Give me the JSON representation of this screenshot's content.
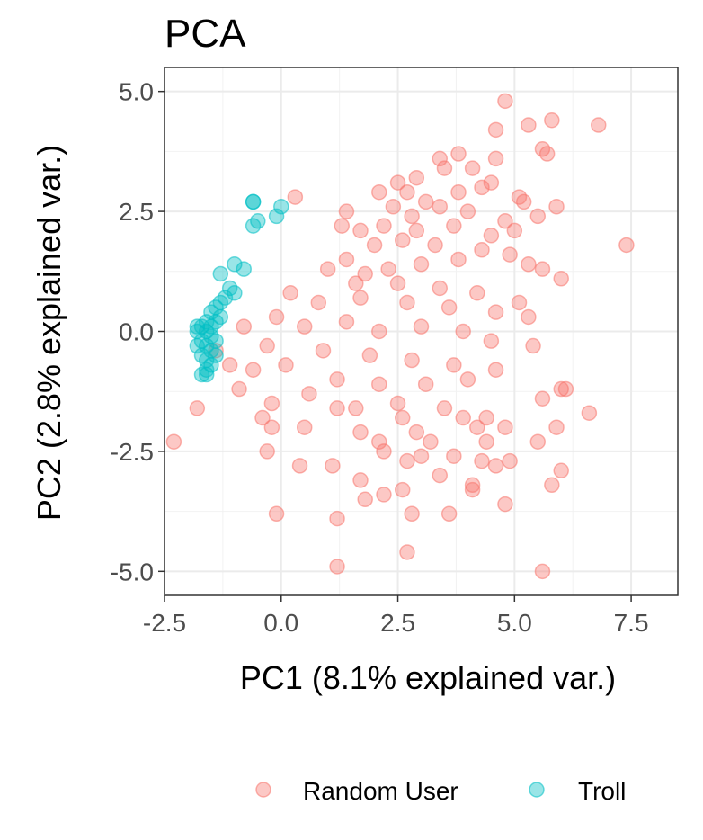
{
  "chart_data": {
    "type": "scatter",
    "title": "PCA",
    "xlabel": "PC1 (8.1% explained var.)",
    "ylabel": "PC2 (2.8% explained var.)",
    "xlim": [
      -2.5,
      8.5
    ],
    "ylim": [
      -5.5,
      5.5
    ],
    "xticks": [
      -2.5,
      0.0,
      2.5,
      5.0,
      7.5
    ],
    "xtick_labels": [
      "-2.5",
      "0.0",
      "2.5",
      "5.0",
      "7.5"
    ],
    "yticks": [
      5.0,
      2.5,
      0.0,
      -2.5,
      -5.0
    ],
    "ytick_labels": [
      "5.0",
      "2.5",
      "0.0",
      "-2.5",
      "-5.0"
    ],
    "grid": true,
    "legend_position": "bottom",
    "series": [
      {
        "name": "Random User",
        "color": "#f8766d",
        "points": [
          [
            4.8,
            4.8
          ],
          [
            6.8,
            4.3
          ],
          [
            5.8,
            4.4
          ],
          [
            4.6,
            4.2
          ],
          [
            5.3,
            4.3
          ],
          [
            3.8,
            3.7
          ],
          [
            3.4,
            3.6
          ],
          [
            2.9,
            3.2
          ],
          [
            3.5,
            3.4
          ],
          [
            4.1,
            3.4
          ],
          [
            4.6,
            3.6
          ],
          [
            5.6,
            3.8
          ],
          [
            5.7,
            3.7
          ],
          [
            2.5,
            3.1
          ],
          [
            2.1,
            2.9
          ],
          [
            2.7,
            2.9
          ],
          [
            3.1,
            2.7
          ],
          [
            3.8,
            2.9
          ],
          [
            4.3,
            3.0
          ],
          [
            4.5,
            3.1
          ],
          [
            5.1,
            2.8
          ],
          [
            5.2,
            2.7
          ],
          [
            0.3,
            2.8
          ],
          [
            1.4,
            2.5
          ],
          [
            2.4,
            2.6
          ],
          [
            2.8,
            2.4
          ],
          [
            3.4,
            2.6
          ],
          [
            4.0,
            2.5
          ],
          [
            4.8,
            2.3
          ],
          [
            5.9,
            2.6
          ],
          [
            5.5,
            2.4
          ],
          [
            1.3,
            2.2
          ],
          [
            1.7,
            2.1
          ],
          [
            2.2,
            2.2
          ],
          [
            2.9,
            2.1
          ],
          [
            3.7,
            2.2
          ],
          [
            4.5,
            2.0
          ],
          [
            5.0,
            2.1
          ],
          [
            7.4,
            1.8
          ],
          [
            2.0,
            1.8
          ],
          [
            2.6,
            1.9
          ],
          [
            3.3,
            1.8
          ],
          [
            4.3,
            1.7
          ],
          [
            5.3,
            1.4
          ],
          [
            1.4,
            1.5
          ],
          [
            1.8,
            1.2
          ],
          [
            2.3,
            1.3
          ],
          [
            3.0,
            1.4
          ],
          [
            3.8,
            1.5
          ],
          [
            4.9,
            1.6
          ],
          [
            5.6,
            1.3
          ],
          [
            6.0,
            1.1
          ],
          [
            1.0,
            1.3
          ],
          [
            1.6,
            1.0
          ],
          [
            2.5,
            1.0
          ],
          [
            3.4,
            0.9
          ],
          [
            4.2,
            0.8
          ],
          [
            5.1,
            0.6
          ],
          [
            0.2,
            0.8
          ],
          [
            0.8,
            0.6
          ],
          [
            1.7,
            0.7
          ],
          [
            2.7,
            0.6
          ],
          [
            3.6,
            0.5
          ],
          [
            4.6,
            0.4
          ],
          [
            5.3,
            0.3
          ],
          [
            -0.1,
            0.3
          ],
          [
            0.5,
            0.1
          ],
          [
            1.4,
            0.2
          ],
          [
            2.1,
            0.0
          ],
          [
            3.0,
            0.1
          ],
          [
            3.9,
            0.0
          ],
          [
            4.5,
            -0.2
          ],
          [
            5.4,
            -0.3
          ],
          [
            -0.8,
            0.1
          ],
          [
            -0.3,
            -0.3
          ],
          [
            0.9,
            -0.4
          ],
          [
            1.9,
            -0.5
          ],
          [
            2.8,
            -0.6
          ],
          [
            3.7,
            -0.7
          ],
          [
            4.6,
            -0.8
          ],
          [
            -1.4,
            -0.4
          ],
          [
            -1.1,
            -0.7
          ],
          [
            -0.6,
            -0.8
          ],
          [
            0.1,
            -0.7
          ],
          [
            1.2,
            -1.0
          ],
          [
            2.1,
            -1.1
          ],
          [
            3.1,
            -1.1
          ],
          [
            4.0,
            -1.0
          ],
          [
            6.1,
            -1.2
          ],
          [
            6.0,
            -1.2
          ],
          [
            -0.9,
            -1.2
          ],
          [
            -0.2,
            -1.5
          ],
          [
            0.6,
            -1.3
          ],
          [
            1.6,
            -1.6
          ],
          [
            2.5,
            -1.5
          ],
          [
            3.5,
            -1.6
          ],
          [
            5.6,
            -1.4
          ],
          [
            -1.8,
            -1.6
          ],
          [
            -0.4,
            -1.8
          ],
          [
            1.2,
            -1.6
          ],
          [
            2.6,
            -1.8
          ],
          [
            3.9,
            -1.8
          ],
          [
            4.4,
            -1.8
          ],
          [
            6.6,
            -1.7
          ],
          [
            -0.2,
            -2.0
          ],
          [
            0.5,
            -2.0
          ],
          [
            1.7,
            -2.1
          ],
          [
            2.9,
            -2.1
          ],
          [
            4.2,
            -2.0
          ],
          [
            4.8,
            -2.0
          ],
          [
            5.9,
            -2.0
          ],
          [
            -2.3,
            -2.3
          ],
          [
            2.1,
            -2.3
          ],
          [
            3.2,
            -2.3
          ],
          [
            4.4,
            -2.3
          ],
          [
            5.5,
            -2.3
          ],
          [
            -0.3,
            -2.5
          ],
          [
            2.2,
            -2.5
          ],
          [
            3.0,
            -2.6
          ],
          [
            3.7,
            -2.6
          ],
          [
            4.3,
            -2.7
          ],
          [
            4.9,
            -2.7
          ],
          [
            0.4,
            -2.8
          ],
          [
            1.1,
            -2.8
          ],
          [
            2.7,
            -2.7
          ],
          [
            4.6,
            -2.8
          ],
          [
            6.0,
            -2.9
          ],
          [
            1.7,
            -3.1
          ],
          [
            3.4,
            -3.0
          ],
          [
            4.1,
            -3.2
          ],
          [
            5.8,
            -3.2
          ],
          [
            1.8,
            -3.5
          ],
          [
            2.2,
            -3.4
          ],
          [
            2.6,
            -3.3
          ],
          [
            4.1,
            -3.3
          ],
          [
            4.8,
            -3.6
          ],
          [
            -0.1,
            -3.8
          ],
          [
            1.2,
            -3.9
          ],
          [
            2.8,
            -3.8
          ],
          [
            3.6,
            -3.8
          ],
          [
            2.7,
            -4.6
          ],
          [
            1.2,
            -4.9
          ],
          [
            5.6,
            -5.0
          ]
        ]
      },
      {
        "name": "Troll",
        "color": "#00bfc4",
        "points": [
          [
            -0.6,
            2.7
          ],
          [
            -0.6,
            2.7
          ],
          [
            0.0,
            2.6
          ],
          [
            -0.1,
            2.4
          ],
          [
            -0.5,
            2.3
          ],
          [
            -0.6,
            2.2
          ],
          [
            -1.0,
            1.4
          ],
          [
            -0.8,
            1.3
          ],
          [
            -1.3,
            1.2
          ],
          [
            -1.1,
            0.9
          ],
          [
            -1.0,
            0.8
          ],
          [
            -1.2,
            0.7
          ],
          [
            -1.3,
            0.6
          ],
          [
            -1.4,
            0.5
          ],
          [
            -1.5,
            0.4
          ],
          [
            -1.3,
            0.3
          ],
          [
            -1.4,
            0.2
          ],
          [
            -1.5,
            0.1
          ],
          [
            -1.6,
            0.2
          ],
          [
            -1.7,
            0.1
          ],
          [
            -1.8,
            0.0
          ],
          [
            -1.6,
            0.0
          ],
          [
            -1.5,
            -0.1
          ],
          [
            -1.7,
            -0.2
          ],
          [
            -1.6,
            -0.3
          ],
          [
            -1.5,
            -0.4
          ],
          [
            -1.7,
            -0.5
          ],
          [
            -1.6,
            -0.6
          ],
          [
            -1.5,
            -0.7
          ],
          [
            -1.6,
            -0.8
          ],
          [
            -1.7,
            -0.9
          ],
          [
            -1.6,
            -0.9
          ],
          [
            -1.4,
            -0.5
          ],
          [
            -1.4,
            -0.2
          ],
          [
            -1.8,
            -0.3
          ],
          [
            -1.8,
            0.1
          ]
        ]
      }
    ]
  }
}
